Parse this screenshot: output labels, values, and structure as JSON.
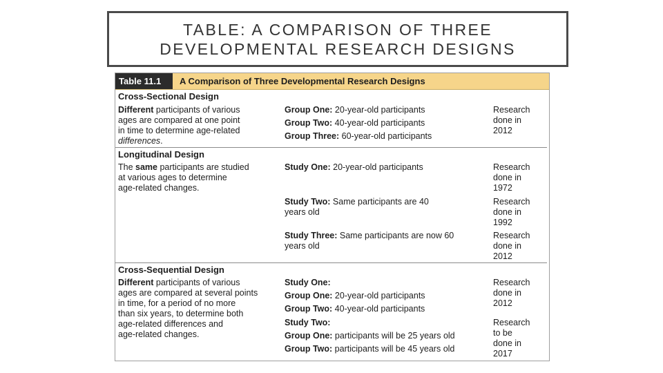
{
  "slide": {
    "title_line1": "TABLE: A COMPARISON OF THREE",
    "title_line2": "DEVELOPMENTAL RESEARCH DESIGNS"
  },
  "table": {
    "number": "Table 11.1",
    "caption": "A Comparison of Three Developmental Research Designs",
    "sections": [
      {
        "title": "Cross-Sectional Design",
        "description": [
          [
            {
              "t": "Different",
              "s": "b"
            },
            {
              "t": " participants of various"
            }
          ],
          [
            {
              "t": "ages are compared at one point"
            }
          ],
          [
            {
              "t": "in time to determine age-related"
            }
          ],
          [
            {
              "t": "differences",
              "s": "i"
            },
            {
              "t": "."
            }
          ]
        ],
        "groups": [
          {
            "label": "Group One:",
            "text": " 20-year-old participants"
          },
          {
            "label": "Group Two:",
            "text": " 40-year-old participants"
          },
          {
            "label": "Group Three:",
            "text": " 60-year-old participants"
          }
        ],
        "dates": [
          "Research",
          "done in",
          "2012"
        ]
      },
      {
        "title": "Longitudinal Design",
        "description": [
          [
            {
              "t": "The "
            },
            {
              "t": "same",
              "s": "b"
            },
            {
              "t": " participants are studied"
            }
          ],
          [
            {
              "t": "at various ages to determine"
            }
          ],
          [
            {
              "t": "age-related changes."
            }
          ]
        ],
        "studies": [
          {
            "label": "Study One:",
            "lines": [
              " 20-year-old participants"
            ],
            "dates": [
              "Research",
              "done in",
              "1972"
            ]
          },
          {
            "label": "Study Two:",
            "lines": [
              " Same participants are 40",
              "years old"
            ],
            "dates": [
              "Research",
              "done in",
              "1992"
            ]
          },
          {
            "label": "Study Three:",
            "lines": [
              " Same participants are now 60",
              "years old"
            ],
            "dates": [
              "Research",
              "done in",
              "2012"
            ]
          }
        ]
      },
      {
        "title": "Cross-Sequential Design",
        "description": [
          [
            {
              "t": "Different",
              "s": "b"
            },
            {
              "t": " participants of various"
            }
          ],
          [
            {
              "t": "ages are compared at several points"
            }
          ],
          [
            {
              "t": "in time, for a period of no more"
            }
          ],
          [
            {
              "t": "than six years, to determine both"
            }
          ],
          [
            {
              "t": "age-related differences and"
            }
          ],
          [
            {
              "t": "age-related changes."
            }
          ]
        ],
        "study_blocks": [
          {
            "heading": "Study One:",
            "groups": [
              {
                "label": "Group One:",
                "text": " 20-year-old participants"
              },
              {
                "label": "Group Two:",
                "text": " 40-year-old participants"
              }
            ],
            "dates": [
              "Research",
              "done in",
              "2012"
            ]
          },
          {
            "heading": "Study Two:",
            "groups": [
              {
                "label": "Group One:",
                "text": " participants will be 25 years old"
              },
              {
                "label": "Group Two:",
                "text": " participants will be 45 years old"
              }
            ],
            "dates": [
              "Research",
              "to be",
              "done in",
              "2017"
            ]
          }
        ]
      }
    ]
  }
}
